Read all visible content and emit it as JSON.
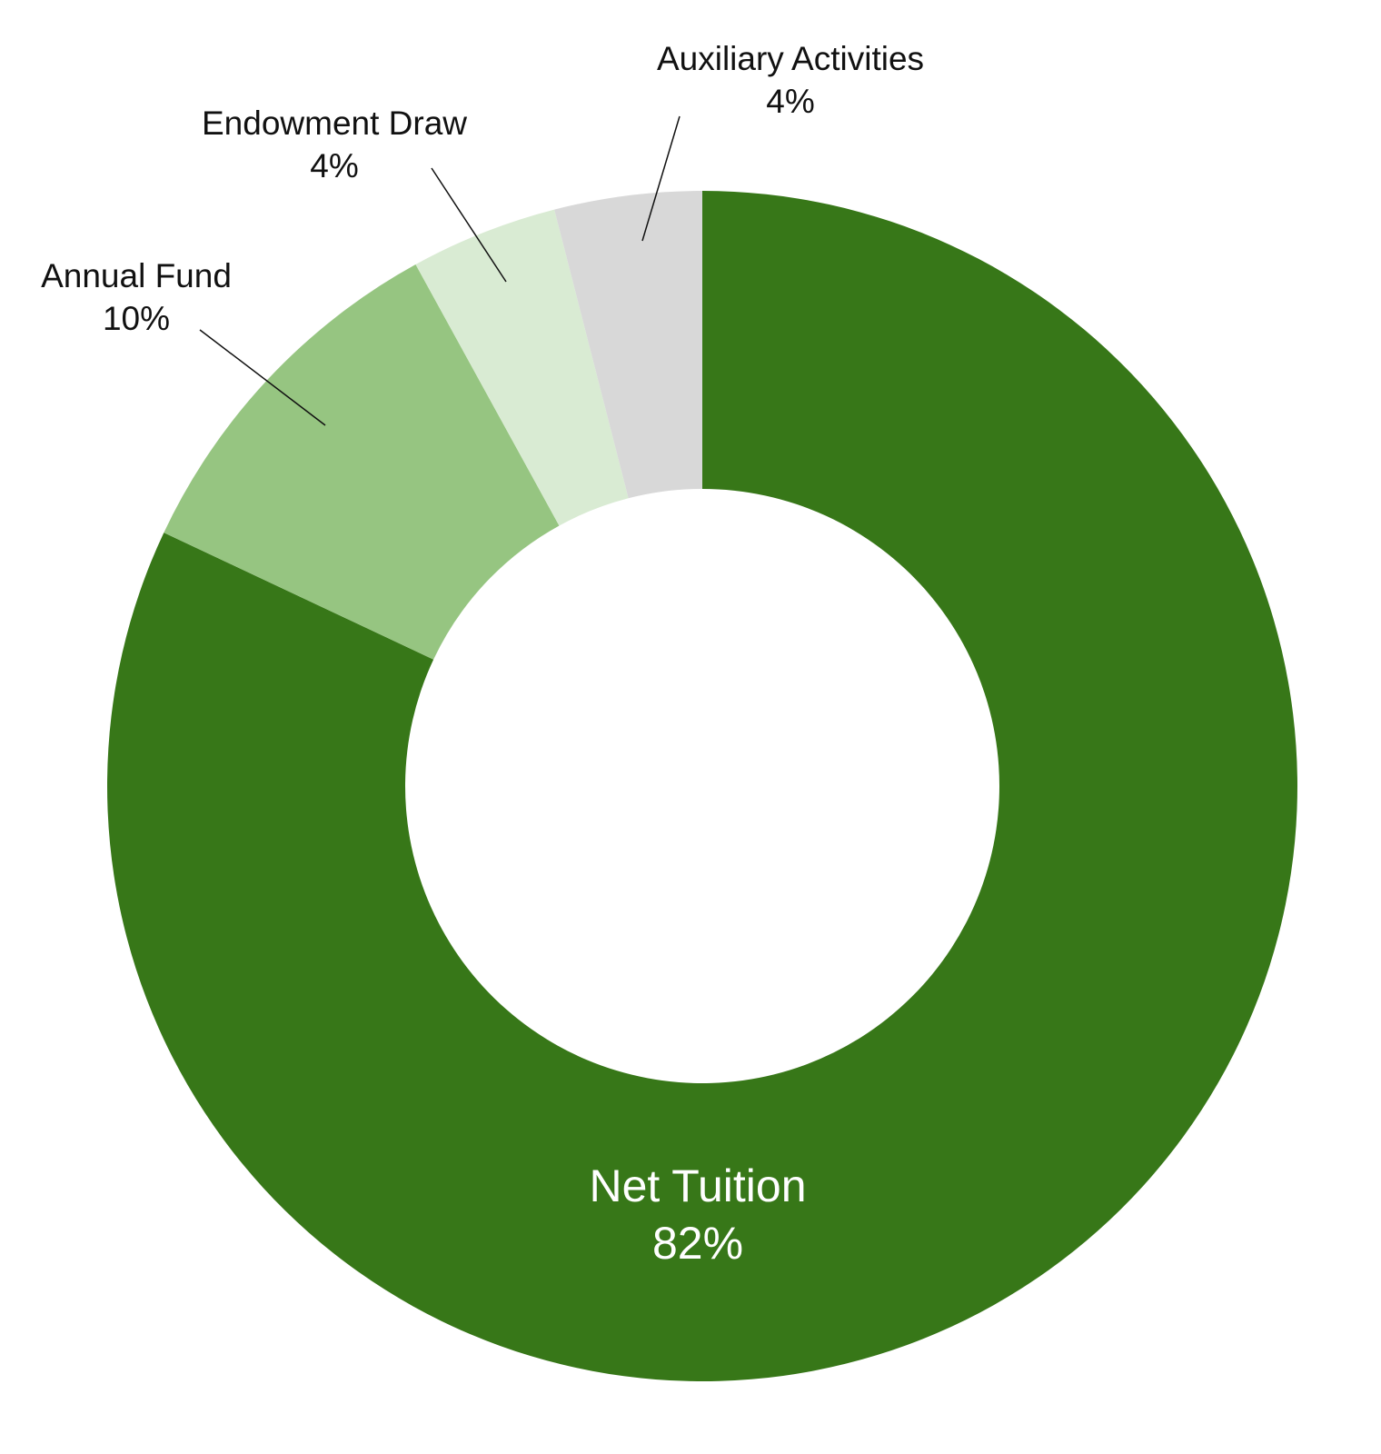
{
  "chart_data": {
    "type": "pie",
    "variant": "donut",
    "title": "",
    "slices": [
      {
        "name": "Net Tuition",
        "percent_label": "82%",
        "value": 82,
        "color": "#377718",
        "label_inside": true
      },
      {
        "name": "Annual Fund",
        "percent_label": "10%",
        "value": 10,
        "color": "#96c581",
        "label_inside": false
      },
      {
        "name": "Endowment Draw",
        "percent_label": "4%",
        "value": 4,
        "color": "#d9ebd3",
        "label_inside": false
      },
      {
        "name": "Auxiliary Activities",
        "percent_label": "4%",
        "value": 4,
        "color": "#d8d8d8",
        "label_inside": false
      }
    ],
    "start_angle": "12 o'clock",
    "direction": "clockwise",
    "legend": "none"
  }
}
